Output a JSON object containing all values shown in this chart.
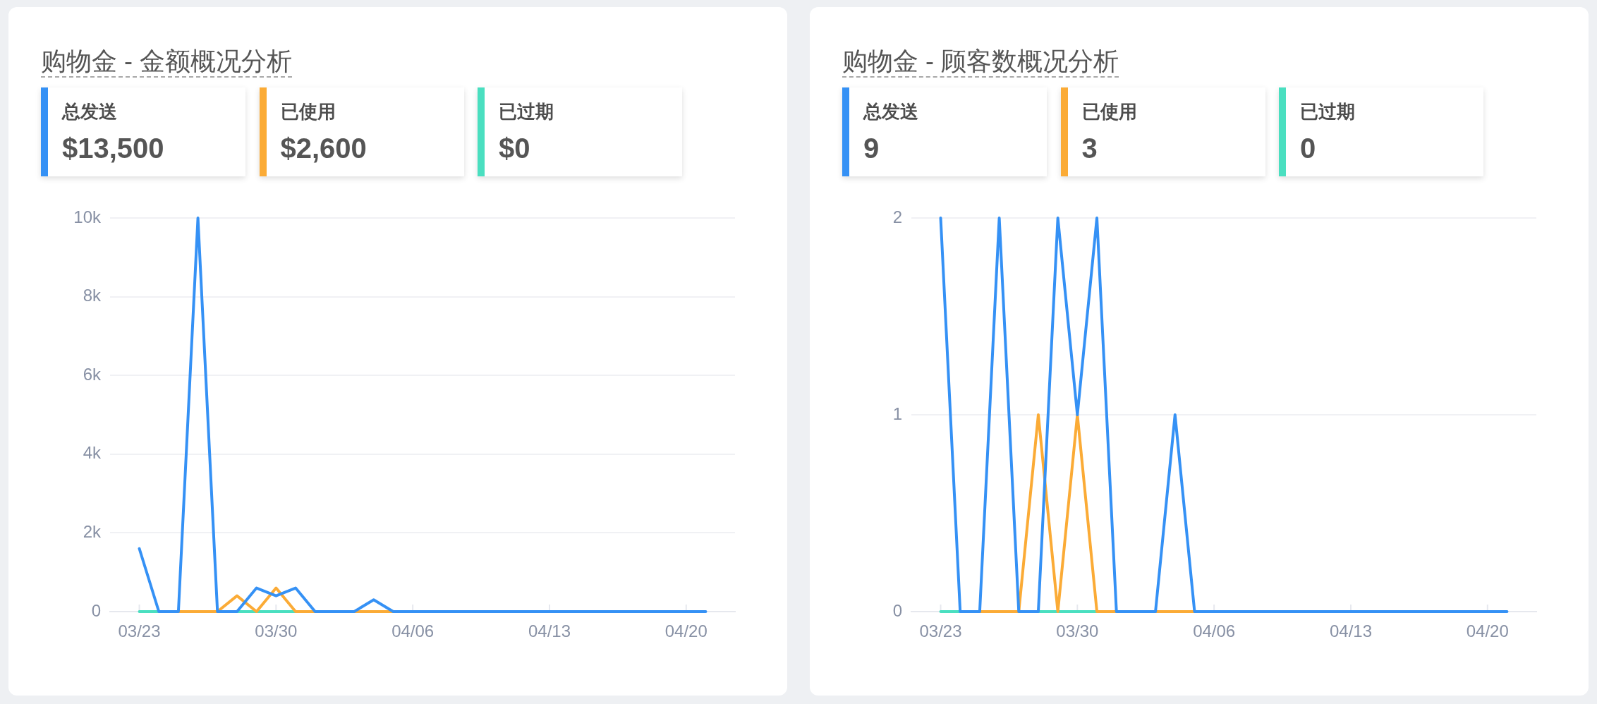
{
  "chart_data": [
    {
      "type": "other",
      "title": "购物金 - 金额概况分析",
      "categories": [
        "总发送",
        "已使用",
        "已过期"
      ],
      "value_labels": [
        "$13,500",
        "$2,600",
        "$0"
      ],
      "colors": [
        "#3591f5",
        "#fbab36",
        "#4adfc0"
      ]
    },
    {
      "type": "line",
      "categories": [
        "03/23",
        null,
        null,
        null,
        null,
        null,
        null,
        "03/30",
        null,
        null,
        null,
        null,
        null,
        null,
        "04/06",
        null,
        null,
        null,
        null,
        null,
        null,
        "04/13",
        null,
        null,
        null,
        null,
        null,
        null,
        "04/20",
        null
      ],
      "series": [
        {
          "color": "#3591f5",
          "values": [
            1600,
            0,
            0,
            10000,
            0,
            0,
            600,
            400,
            600,
            0,
            0,
            0,
            300,
            0,
            0,
            0,
            0,
            0,
            0,
            0,
            0,
            0,
            0,
            0,
            0,
            0,
            0,
            0,
            0,
            0
          ]
        },
        {
          "color": "#fbab36",
          "values": [
            null,
            null,
            0,
            0,
            0,
            400,
            0,
            600,
            0,
            0,
            null,
            0,
            0,
            0,
            null,
            null,
            null,
            null,
            null,
            null,
            null,
            null,
            null,
            null,
            null,
            null,
            null,
            null,
            null,
            null
          ]
        },
        {
          "color": "#4adfc0",
          "values": [
            0,
            0,
            null,
            null,
            null,
            0,
            0,
            0,
            0,
            null,
            null,
            null,
            null,
            null,
            null,
            null,
            null,
            null,
            null,
            null,
            null,
            null,
            null,
            null,
            null,
            null,
            null,
            null,
            null,
            null
          ]
        }
      ],
      "ylim": [
        0,
        10000
      ],
      "yticks": [
        0,
        {
          "value": 2000,
          "label": "2k"
        },
        {
          "value": 4000,
          "label": "4k"
        },
        {
          "value": 6000,
          "label": "6k"
        },
        {
          "value": 8000,
          "label": "8k"
        },
        {
          "value": 10000,
          "label": "10k"
        }
      ],
      "grid": "y"
    },
    {
      "type": "other",
      "title": "购物金 - 顾客数概况分析",
      "categories": [
        "总发送",
        "已使用",
        "已过期"
      ],
      "value_labels": [
        "9",
        "3",
        "0"
      ],
      "colors": [
        "#3591f5",
        "#fbab36",
        "#4adfc0"
      ]
    },
    {
      "type": "line",
      "categories": [
        "03/23",
        null,
        null,
        null,
        null,
        null,
        null,
        "03/30",
        null,
        null,
        null,
        null,
        null,
        null,
        "04/06",
        null,
        null,
        null,
        null,
        null,
        null,
        "04/13",
        null,
        null,
        null,
        null,
        null,
        null,
        "04/20",
        null
      ],
      "series": [
        {
          "color": "#3591f5",
          "values": [
            2,
            0,
            0,
            2,
            0,
            0,
            2,
            1,
            2,
            0,
            0,
            0,
            1,
            0,
            0,
            0,
            0,
            0,
            0,
            0,
            0,
            0,
            0,
            0,
            0,
            0,
            0,
            0,
            0,
            0
          ]
        },
        {
          "color": "#fbab36",
          "values": [
            null,
            null,
            0,
            0,
            0,
            1,
            0,
            1,
            0,
            0,
            null,
            0,
            0,
            0,
            null,
            null,
            null,
            null,
            null,
            null,
            null,
            null,
            null,
            null,
            null,
            null,
            null,
            null,
            null,
            null
          ]
        },
        {
          "color": "#4adfc0",
          "values": [
            0,
            0,
            null,
            null,
            null,
            0,
            0,
            0,
            0,
            null,
            null,
            null,
            null,
            null,
            null,
            null,
            null,
            null,
            null,
            null,
            null,
            null,
            null,
            null,
            null,
            null,
            null,
            null,
            null,
            null
          ]
        }
      ],
      "ylim": [
        0,
        2
      ],
      "yticks": [
        0,
        1,
        2
      ],
      "grid": "y"
    }
  ]
}
